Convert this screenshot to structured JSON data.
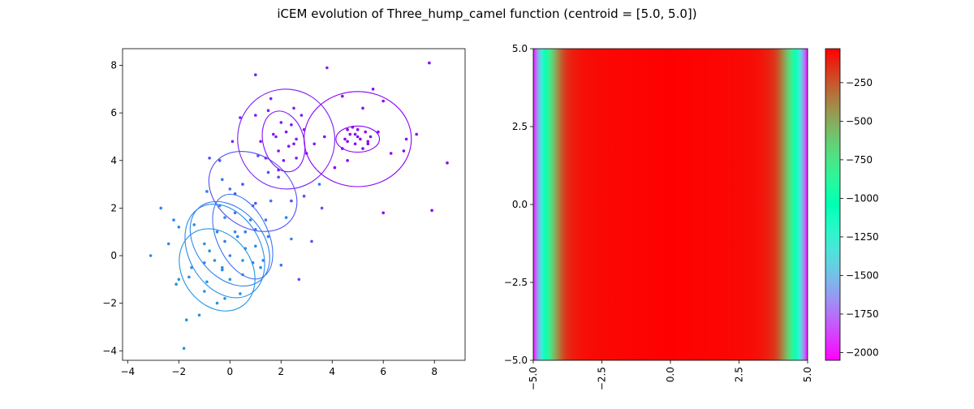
{
  "figure": {
    "title": "iCEM evolution of Three_hump_camel function (centroid = [5.0, 5.0])"
  },
  "chart_data": [
    {
      "type": "scatter",
      "xlim": [
        -4.2,
        9.2
      ],
      "ylim": [
        -4.4,
        8.7
      ],
      "xticks": [
        -4,
        -2,
        0,
        2,
        4,
        6,
        8
      ],
      "yticks": [
        -4,
        -2,
        0,
        2,
        4,
        6,
        8
      ],
      "grid": false,
      "colormap": "rainbow",
      "iterations": [
        {
          "mean": [
            -0.5,
            -0.6
          ],
          "width": 2.7,
          "height": 3.7,
          "angle": 35,
          "color": "#2196e0",
          "points": [
            [
              -2.0,
              -1.0
            ],
            [
              -1.5,
              -0.5
            ],
            [
              -1.0,
              -1.5
            ],
            [
              -0.5,
              -2.0
            ],
            [
              0.0,
              -1.0
            ],
            [
              -0.8,
              0.2
            ],
            [
              -1.2,
              -2.5
            ],
            [
              -1.7,
              -2.7
            ],
            [
              -2.1,
              -1.2
            ],
            [
              -0.3,
              -0.5
            ],
            [
              0.4,
              -1.6
            ],
            [
              -0.9,
              -1.1
            ],
            [
              -1.8,
              -3.9
            ],
            [
              -0.2,
              -1.8
            ],
            [
              0.5,
              -0.2
            ]
          ]
        },
        {
          "mean": [
            -0.2,
            0.2
          ],
          "width": 2.8,
          "height": 4.2,
          "angle": 30,
          "color": "#2a8ee8",
          "points": [
            [
              -1.0,
              0.5
            ],
            [
              0.2,
              1.0
            ],
            [
              -0.6,
              -0.2
            ],
            [
              1.0,
              0.4
            ],
            [
              0.5,
              -0.8
            ],
            [
              -1.4,
              1.3
            ],
            [
              -0.2,
              1.6
            ],
            [
              0.6,
              0.3
            ],
            [
              -2.4,
              0.5
            ],
            [
              -3.1,
              0.0
            ],
            [
              -2.0,
              1.2
            ],
            [
              1.2,
              -0.5
            ],
            [
              -1.6,
              -0.9
            ],
            [
              -0.4,
              2.1
            ]
          ]
        },
        {
          "mean": [
            0.0,
            0.5
          ],
          "width": 2.6,
          "height": 4.0,
          "angle": 40,
          "color": "#3282ef",
          "points": [
            [
              0.3,
              0.8
            ],
            [
              -0.5,
              1.0
            ],
            [
              0.8,
              1.5
            ],
            [
              -1.0,
              -0.3
            ],
            [
              1.5,
              0.8
            ],
            [
              0.0,
              0.0
            ],
            [
              -0.3,
              -0.6
            ],
            [
              1.3,
              -0.2
            ],
            [
              -2.2,
              1.5
            ],
            [
              -2.7,
              2.0
            ],
            [
              2.2,
              1.6
            ],
            [
              2.4,
              0.7
            ]
          ]
        },
        {
          "mean": [
            0.5,
            0.8
          ],
          "width": 2.0,
          "height": 3.8,
          "angle": 25,
          "color": "#3a76f2",
          "points": [
            [
              0.6,
              1.0
            ],
            [
              0.2,
              1.8
            ],
            [
              1.0,
              1.1
            ],
            [
              -0.2,
              0.6
            ],
            [
              0.9,
              -0.3
            ],
            [
              1.6,
              2.3
            ],
            [
              -0.9,
              2.7
            ],
            [
              0.0,
              2.8
            ],
            [
              1.4,
              1.5
            ],
            [
              -0.3,
              3.2
            ],
            [
              3.5,
              3.0
            ],
            [
              2.0,
              -0.4
            ]
          ]
        },
        {
          "mean": [
            0.9,
            2.7
          ],
          "width": 2.8,
          "height": 4.0,
          "angle": 55,
          "color": "#5250f5",
          "points": [
            [
              0.5,
              3.0
            ],
            [
              1.0,
              2.2
            ],
            [
              1.5,
              3.5
            ],
            [
              0.2,
              2.6
            ],
            [
              -0.8,
              4.1
            ],
            [
              -0.4,
              4.0
            ],
            [
              1.9,
              3.3
            ],
            [
              2.4,
              2.3
            ],
            [
              2.9,
              2.5
            ],
            [
              0.9,
              2.1
            ],
            [
              1.1,
              4.2
            ],
            [
              3.6,
              2.0
            ],
            [
              2.7,
              -1.0
            ],
            [
              3.2,
              0.6
            ]
          ]
        },
        {
          "mean": [
            2.2,
            4.9
          ],
          "width": 3.8,
          "height": 4.2,
          "angle": 10,
          "color": "#7a20f7",
          "points": [
            [
              1.8,
              5.0
            ],
            [
              2.3,
              4.6
            ],
            [
              2.0,
              5.6
            ],
            [
              2.6,
              4.9
            ],
            [
              1.4,
              4.1
            ],
            [
              2.9,
              5.3
            ],
            [
              1.0,
              5.9
            ],
            [
              1.6,
              6.6
            ],
            [
              3.0,
              4.3
            ],
            [
              0.4,
              5.8
            ],
            [
              1.0,
              7.6
            ],
            [
              1.5,
              6.1
            ],
            [
              2.8,
              5.9
            ],
            [
              3.3,
              4.7
            ],
            [
              2.5,
              6.2
            ],
            [
              1.9,
              3.6
            ],
            [
              3.8,
              7.9
            ],
            [
              0.1,
              4.8
            ],
            [
              1.2,
              4.8
            ],
            [
              2.6,
              4.1
            ]
          ]
        },
        {
          "mean": [
            2.1,
            4.8
          ],
          "width": 1.6,
          "height": 2.6,
          "angle": 15,
          "color": "#8410f7",
          "points": [
            [
              2.2,
              5.2
            ],
            [
              1.9,
              4.4
            ],
            [
              2.4,
              5.5
            ],
            [
              1.7,
              5.1
            ],
            [
              2.1,
              4.0
            ],
            [
              2.5,
              4.7
            ]
          ]
        },
        {
          "mean": [
            5.0,
            4.9
          ],
          "width": 4.2,
          "height": 4.0,
          "angle": 0,
          "color": "#8a00f8",
          "points": [
            [
              5.0,
              5.0
            ],
            [
              4.6,
              5.3
            ],
            [
              5.4,
              4.7
            ],
            [
              4.4,
              4.5
            ],
            [
              5.8,
              5.2
            ],
            [
              6.3,
              4.3
            ],
            [
              6.9,
              4.9
            ],
            [
              4.4,
              6.7
            ],
            [
              5.2,
              6.2
            ],
            [
              6.0,
              6.5
            ],
            [
              5.6,
              7.0
            ],
            [
              4.1,
              3.7
            ],
            [
              4.6,
              4.0
            ],
            [
              6.0,
              1.8
            ],
            [
              7.3,
              5.1
            ],
            [
              7.9,
              1.9
            ],
            [
              8.5,
              3.9
            ],
            [
              7.8,
              8.1
            ],
            [
              6.8,
              4.4
            ],
            [
              3.7,
              5.0
            ]
          ]
        },
        {
          "mean": [
            5.0,
            4.9
          ],
          "width": 1.7,
          "height": 1.1,
          "angle": 0,
          "color": "#8a00f8",
          "points": [
            [
              4.7,
              5.1
            ],
            [
              5.1,
              4.9
            ],
            [
              5.3,
              5.2
            ],
            [
              4.9,
              4.7
            ],
            [
              5.4,
              4.8
            ],
            [
              4.5,
              4.9
            ],
            [
              5.0,
              5.3
            ],
            [
              4.8,
              5.4
            ],
            [
              5.2,
              4.5
            ],
            [
              4.6,
              4.8
            ],
            [
              5.5,
              5.0
            ],
            [
              4.9,
              5.1
            ]
          ]
        }
      ]
    },
    {
      "type": "heatmap",
      "colormap": "rainbow",
      "xticks": [
        "-5.0",
        "-2.5",
        "0.0",
        "2.5",
        "5.0"
      ],
      "yticks": [
        "5.0",
        "2.5",
        "0.0",
        "-2.5",
        "-5.0"
      ],
      "profile": {
        "x": [
          -5.0,
          -4.95,
          -4.9,
          -4.8,
          -4.7,
          -4.6,
          -4.5,
          -4.4,
          -4.3,
          -4.2,
          -4.1,
          -4.0,
          -3.9,
          -3.8,
          -3.6,
          -3.4,
          -3.2,
          -3.0,
          -2.5,
          0.0,
          2.5,
          3.0,
          3.2,
          3.4,
          3.6,
          3.8,
          3.9,
          4.0,
          4.1,
          4.2,
          4.3,
          4.4,
          4.5,
          4.6,
          4.7,
          4.8,
          4.9,
          4.95,
          5.0
        ],
        "value": [
          -2020,
          -1900,
          -1760,
          -1520,
          -1300,
          -1100,
          -930,
          -780,
          -640,
          -510,
          -400,
          -300,
          -220,
          -160,
          -110,
          -85,
          -70,
          -60,
          -50,
          -30,
          -50,
          -60,
          -70,
          -90,
          -120,
          -170,
          -230,
          -310,
          -410,
          -520,
          -650,
          -790,
          -940,
          -1110,
          -1310,
          -1530,
          -1770,
          -1900,
          -2020
        ]
      },
      "colorbar": {
        "min": -2050,
        "max": -30,
        "ticks": [
          -250,
          -500,
          -750,
          -1000,
          -1250,
          -1500,
          -1750,
          -2000
        ],
        "tick_labels": [
          "−250",
          "−500",
          "−750",
          "−1000",
          "−1250",
          "−1500",
          "−1750",
          "−2000"
        ]
      }
    }
  ]
}
